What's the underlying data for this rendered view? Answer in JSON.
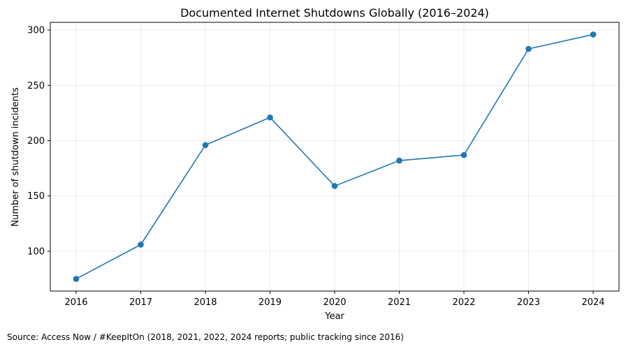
{
  "chart_data": {
    "type": "line",
    "title": "Documented Internet Shutdowns Globally (2016–2024)",
    "xlabel": "Year",
    "ylabel": "Number of shutdown incidents",
    "x": [
      "2016",
      "2017",
      "2018",
      "2019",
      "2020",
      "2021",
      "2022",
      "2023",
      "2024"
    ],
    "series": [
      {
        "values": [
          75,
          106,
          196,
          221,
          159,
          182,
          187,
          283,
          296
        ],
        "color": "#1f77b4"
      }
    ],
    "ylim": [
      64,
      307
    ],
    "yticks": [
      100,
      150,
      200,
      250,
      300
    ],
    "grid": true,
    "markers": "circle"
  },
  "source": "Source: Access Now / #KeepItOn (2018, 2021, 2022, 2024 reports; public tracking since 2016)"
}
